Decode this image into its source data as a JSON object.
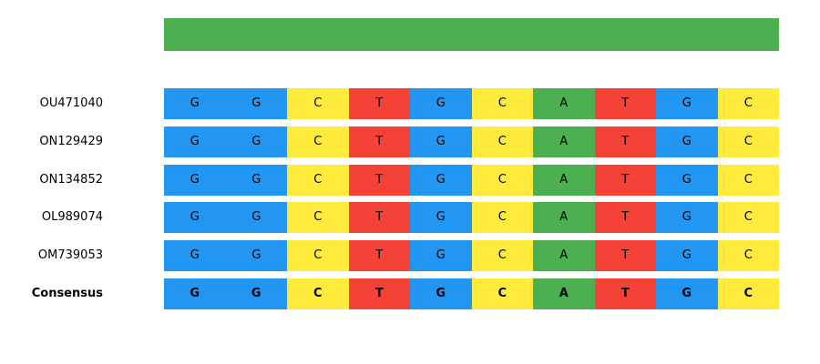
{
  "colors": {
    "G": "#2196F3",
    "C": "#FFEB3B",
    "T": "#F44336",
    "A": "#4CAF50",
    "conservation": "#4CAF50"
  },
  "conservation": [
    1,
    1,
    1,
    1,
    1,
    1,
    1,
    1,
    1,
    1
  ],
  "rows": [
    {
      "label": "OU471040",
      "seq": [
        "G",
        "G",
        "C",
        "T",
        "G",
        "C",
        "A",
        "T",
        "G",
        "C"
      ],
      "bold": false
    },
    {
      "label": "ON129429",
      "seq": [
        "G",
        "G",
        "C",
        "T",
        "G",
        "C",
        "A",
        "T",
        "G",
        "C"
      ],
      "bold": false
    },
    {
      "label": "ON134852",
      "seq": [
        "G",
        "G",
        "C",
        "T",
        "G",
        "C",
        "A",
        "T",
        "G",
        "C"
      ],
      "bold": false
    },
    {
      "label": "OL989074",
      "seq": [
        "G",
        "G",
        "C",
        "T",
        "G",
        "C",
        "A",
        "T",
        "G",
        "C"
      ],
      "bold": false
    },
    {
      "label": "OM739053",
      "seq": [
        "G",
        "G",
        "C",
        "T",
        "G",
        "C",
        "A",
        "T",
        "G",
        "C"
      ],
      "bold": false
    },
    {
      "label": "Consensus",
      "seq": [
        "G",
        "G",
        "C",
        "T",
        "G",
        "C",
        "A",
        "T",
        "G",
        "C"
      ],
      "bold": true
    }
  ]
}
